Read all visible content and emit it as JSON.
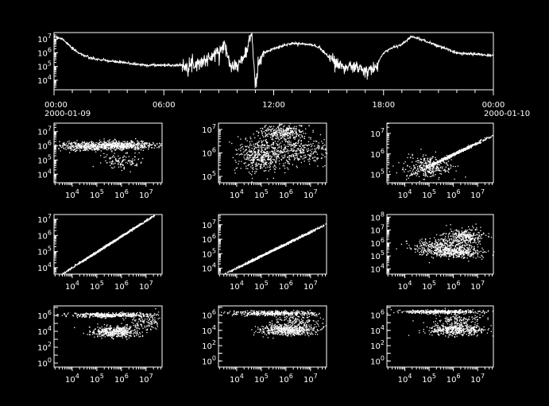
{
  "background": "#000000",
  "foreground": "#ffffff",
  "chart_data": [
    {
      "type": "line",
      "yscale": "log",
      "ylim": [
        2000,
        30000000
      ],
      "yticks": [
        4,
        5,
        6,
        7
      ],
      "xlim_hours": [
        0,
        24
      ],
      "xticks": [
        {
          "hour": 0,
          "label": "00:00",
          "sublabel": "2000-01-09"
        },
        {
          "hour": 6,
          "label": "06:00",
          "sublabel": ""
        },
        {
          "hour": 12,
          "label": "12:00",
          "sublabel": ""
        },
        {
          "hour": 18,
          "label": "18:00",
          "sublabel": ""
        },
        {
          "hour": 24,
          "label": "00:00",
          "sublabel": "2000-01-10"
        }
      ],
      "series_hours": [
        0,
        0.5,
        1,
        1.5,
        2,
        3,
        4,
        5,
        6,
        7,
        7.5,
        8,
        8.5,
        9,
        9.3,
        9.6,
        10,
        10.5,
        10.8,
        11,
        11.2,
        11.5,
        12,
        13,
        14,
        14.5,
        15,
        15.5,
        16,
        16.5,
        17,
        17.5,
        18,
        18.5,
        19,
        19.5,
        20,
        21,
        22,
        23,
        24
      ],
      "series_log10_values": [
        7.2,
        7.0,
        6.3,
        5.9,
        5.6,
        5.4,
        5.25,
        5.1,
        5.1,
        5.1,
        5.15,
        5.3,
        5.6,
        6.1,
        6.6,
        5.3,
        5.0,
        6.0,
        7.5,
        3.5,
        5.5,
        6.0,
        6.3,
        6.7,
        6.6,
        6.4,
        5.7,
        5.2,
        4.9,
        5.0,
        4.6,
        4.8,
        6.0,
        6.4,
        6.6,
        7.2,
        7.0,
        6.5,
        6.0,
        5.9,
        5.8
      ]
    },
    {
      "type": "scatter",
      "xscale": "log",
      "yscale": "log",
      "xlim_log10": [
        3.26,
        7.65
      ],
      "ylim_log10": [
        3.4,
        7.6
      ],
      "xticks": [
        4,
        5,
        6,
        7
      ],
      "yticks": [
        4,
        5,
        6,
        7
      ],
      "clusters": [
        {
          "x": 4.8,
          "y": 6.0,
          "sx": 0.8,
          "sy": 0.15,
          "n": 500
        },
        {
          "x": 6.2,
          "y": 6.1,
          "sx": 0.7,
          "sy": 0.15,
          "n": 400
        },
        {
          "x": 6.0,
          "y": 5.0,
          "sx": 0.4,
          "sy": 0.3,
          "n": 120
        }
      ]
    },
    {
      "type": "scatter",
      "xscale": "log",
      "yscale": "log",
      "xlim_log10": [
        3.26,
        7.65
      ],
      "ylim_log10": [
        4.73,
        7.27
      ],
      "xticks": [
        4,
        5,
        6,
        7
      ],
      "yticks": [
        5,
        6,
        7
      ],
      "clusters": [
        {
          "x": 5.0,
          "y": 5.9,
          "sx": 0.5,
          "sy": 0.35,
          "n": 500
        },
        {
          "x": 5.8,
          "y": 6.9,
          "sx": 0.5,
          "sy": 0.15,
          "n": 300
        },
        {
          "x": 6.5,
          "y": 6.1,
          "sx": 0.6,
          "sy": 0.3,
          "n": 300
        }
      ]
    },
    {
      "type": "scatter",
      "xscale": "log",
      "yscale": "log",
      "xlim_log10": [
        3.26,
        7.65
      ],
      "ylim_log10": [
        4.6,
        7.5
      ],
      "xticks": [
        4,
        5,
        6,
        7
      ],
      "yticks": [
        5,
        6,
        7
      ],
      "clusters": [
        {
          "x": 5.0,
          "y": 5.4,
          "sx": 0.5,
          "sy": 0.25,
          "n": 300
        },
        {
          "x": 6.0,
          "y": 6.0,
          "sx": 0.7,
          "sy": 0.5,
          "corr": 0.8,
          "n": 600
        }
      ]
    },
    {
      "type": "scatter",
      "xscale": "log",
      "yscale": "log",
      "xlim_log10": [
        3.26,
        7.65
      ],
      "ylim_log10": [
        3.6,
        7.3
      ],
      "xticks": [
        4,
        5,
        6,
        7
      ],
      "yticks": [
        4,
        5,
        6,
        7
      ],
      "clusters": [
        {
          "x": 5.6,
          "y": 5.6,
          "sx": 1.0,
          "sy": 1.0,
          "corr": 0.97,
          "n": 900
        }
      ]
    },
    {
      "type": "scatter",
      "xscale": "log",
      "yscale": "log",
      "xlim_log10": [
        3.26,
        7.65
      ],
      "ylim_log10": [
        3.6,
        7.7
      ],
      "xticks": [
        4,
        5,
        6,
        7
      ],
      "yticks": [
        4,
        5,
        6,
        7
      ],
      "clusters": [
        {
          "x": 5.5,
          "y": 5.3,
          "sx": 0.9,
          "sy": 0.8,
          "corr": 0.93,
          "n": 900
        }
      ]
    },
    {
      "type": "scatter",
      "xscale": "log",
      "yscale": "log",
      "xlim_log10": [
        3.26,
        7.65
      ],
      "ylim_log10": [
        3.6,
        8.2
      ],
      "xticks": [
        4,
        5,
        6,
        7
      ],
      "yticks": [
        4,
        5,
        6,
        7,
        8
      ],
      "clusters": [
        {
          "x": 5.5,
          "y": 5.8,
          "sx": 0.6,
          "sy": 0.3,
          "n": 300
        },
        {
          "x": 6.0,
          "y": 5.3,
          "sx": 0.6,
          "sy": 0.2,
          "n": 400
        },
        {
          "x": 6.5,
          "y": 6.5,
          "sx": 0.4,
          "sy": 0.3,
          "n": 300
        }
      ]
    },
    {
      "type": "scatter",
      "xscale": "log",
      "yscale": "log",
      "xlim_log10": [
        3.26,
        7.65
      ],
      "ylim_log10": [
        -0.5,
        7.2
      ],
      "xticks": [
        4,
        5,
        6,
        7
      ],
      "yticks": [
        0,
        2,
        4,
        6
      ],
      "clusters": [
        {
          "x": 5.5,
          "y": 6.1,
          "sx": 0.9,
          "sy": 0.15,
          "n": 450
        },
        {
          "x": 5.7,
          "y": 4.0,
          "sx": 0.5,
          "sy": 0.35,
          "n": 450
        },
        {
          "x": 6.9,
          "y": 5.2,
          "sx": 0.3,
          "sy": 0.5,
          "n": 120
        }
      ]
    },
    {
      "type": "scatter",
      "xscale": "log",
      "yscale": "log",
      "xlim_log10": [
        3.26,
        7.65
      ],
      "ylim_log10": [
        -0.8,
        7.2
      ],
      "xticks": [
        4,
        5,
        6,
        7
      ],
      "yticks": [
        0,
        2,
        4,
        6
      ],
      "clusters": [
        {
          "x": 5.4,
          "y": 6.3,
          "sx": 0.9,
          "sy": 0.15,
          "n": 400
        },
        {
          "x": 6.1,
          "y": 4.1,
          "sx": 0.6,
          "sy": 0.35,
          "n": 500
        },
        {
          "x": 6.4,
          "y": 5.3,
          "sx": 0.5,
          "sy": 0.5,
          "n": 150
        }
      ]
    },
    {
      "type": "scatter",
      "xscale": "log",
      "yscale": "log",
      "xlim_log10": [
        3.26,
        7.65
      ],
      "ylim_log10": [
        -0.8,
        7.2
      ],
      "xticks": [
        4,
        5,
        6,
        7
      ],
      "yticks": [
        0,
        2,
        4,
        6
      ],
      "clusters": [
        {
          "x": 5.5,
          "y": 6.5,
          "sx": 0.9,
          "sy": 0.12,
          "n": 400
        },
        {
          "x": 6.1,
          "y": 4.1,
          "sx": 0.6,
          "sy": 0.35,
          "n": 450
        },
        {
          "x": 6.2,
          "y": 5.4,
          "sx": 0.6,
          "sy": 0.5,
          "n": 150
        }
      ]
    }
  ]
}
